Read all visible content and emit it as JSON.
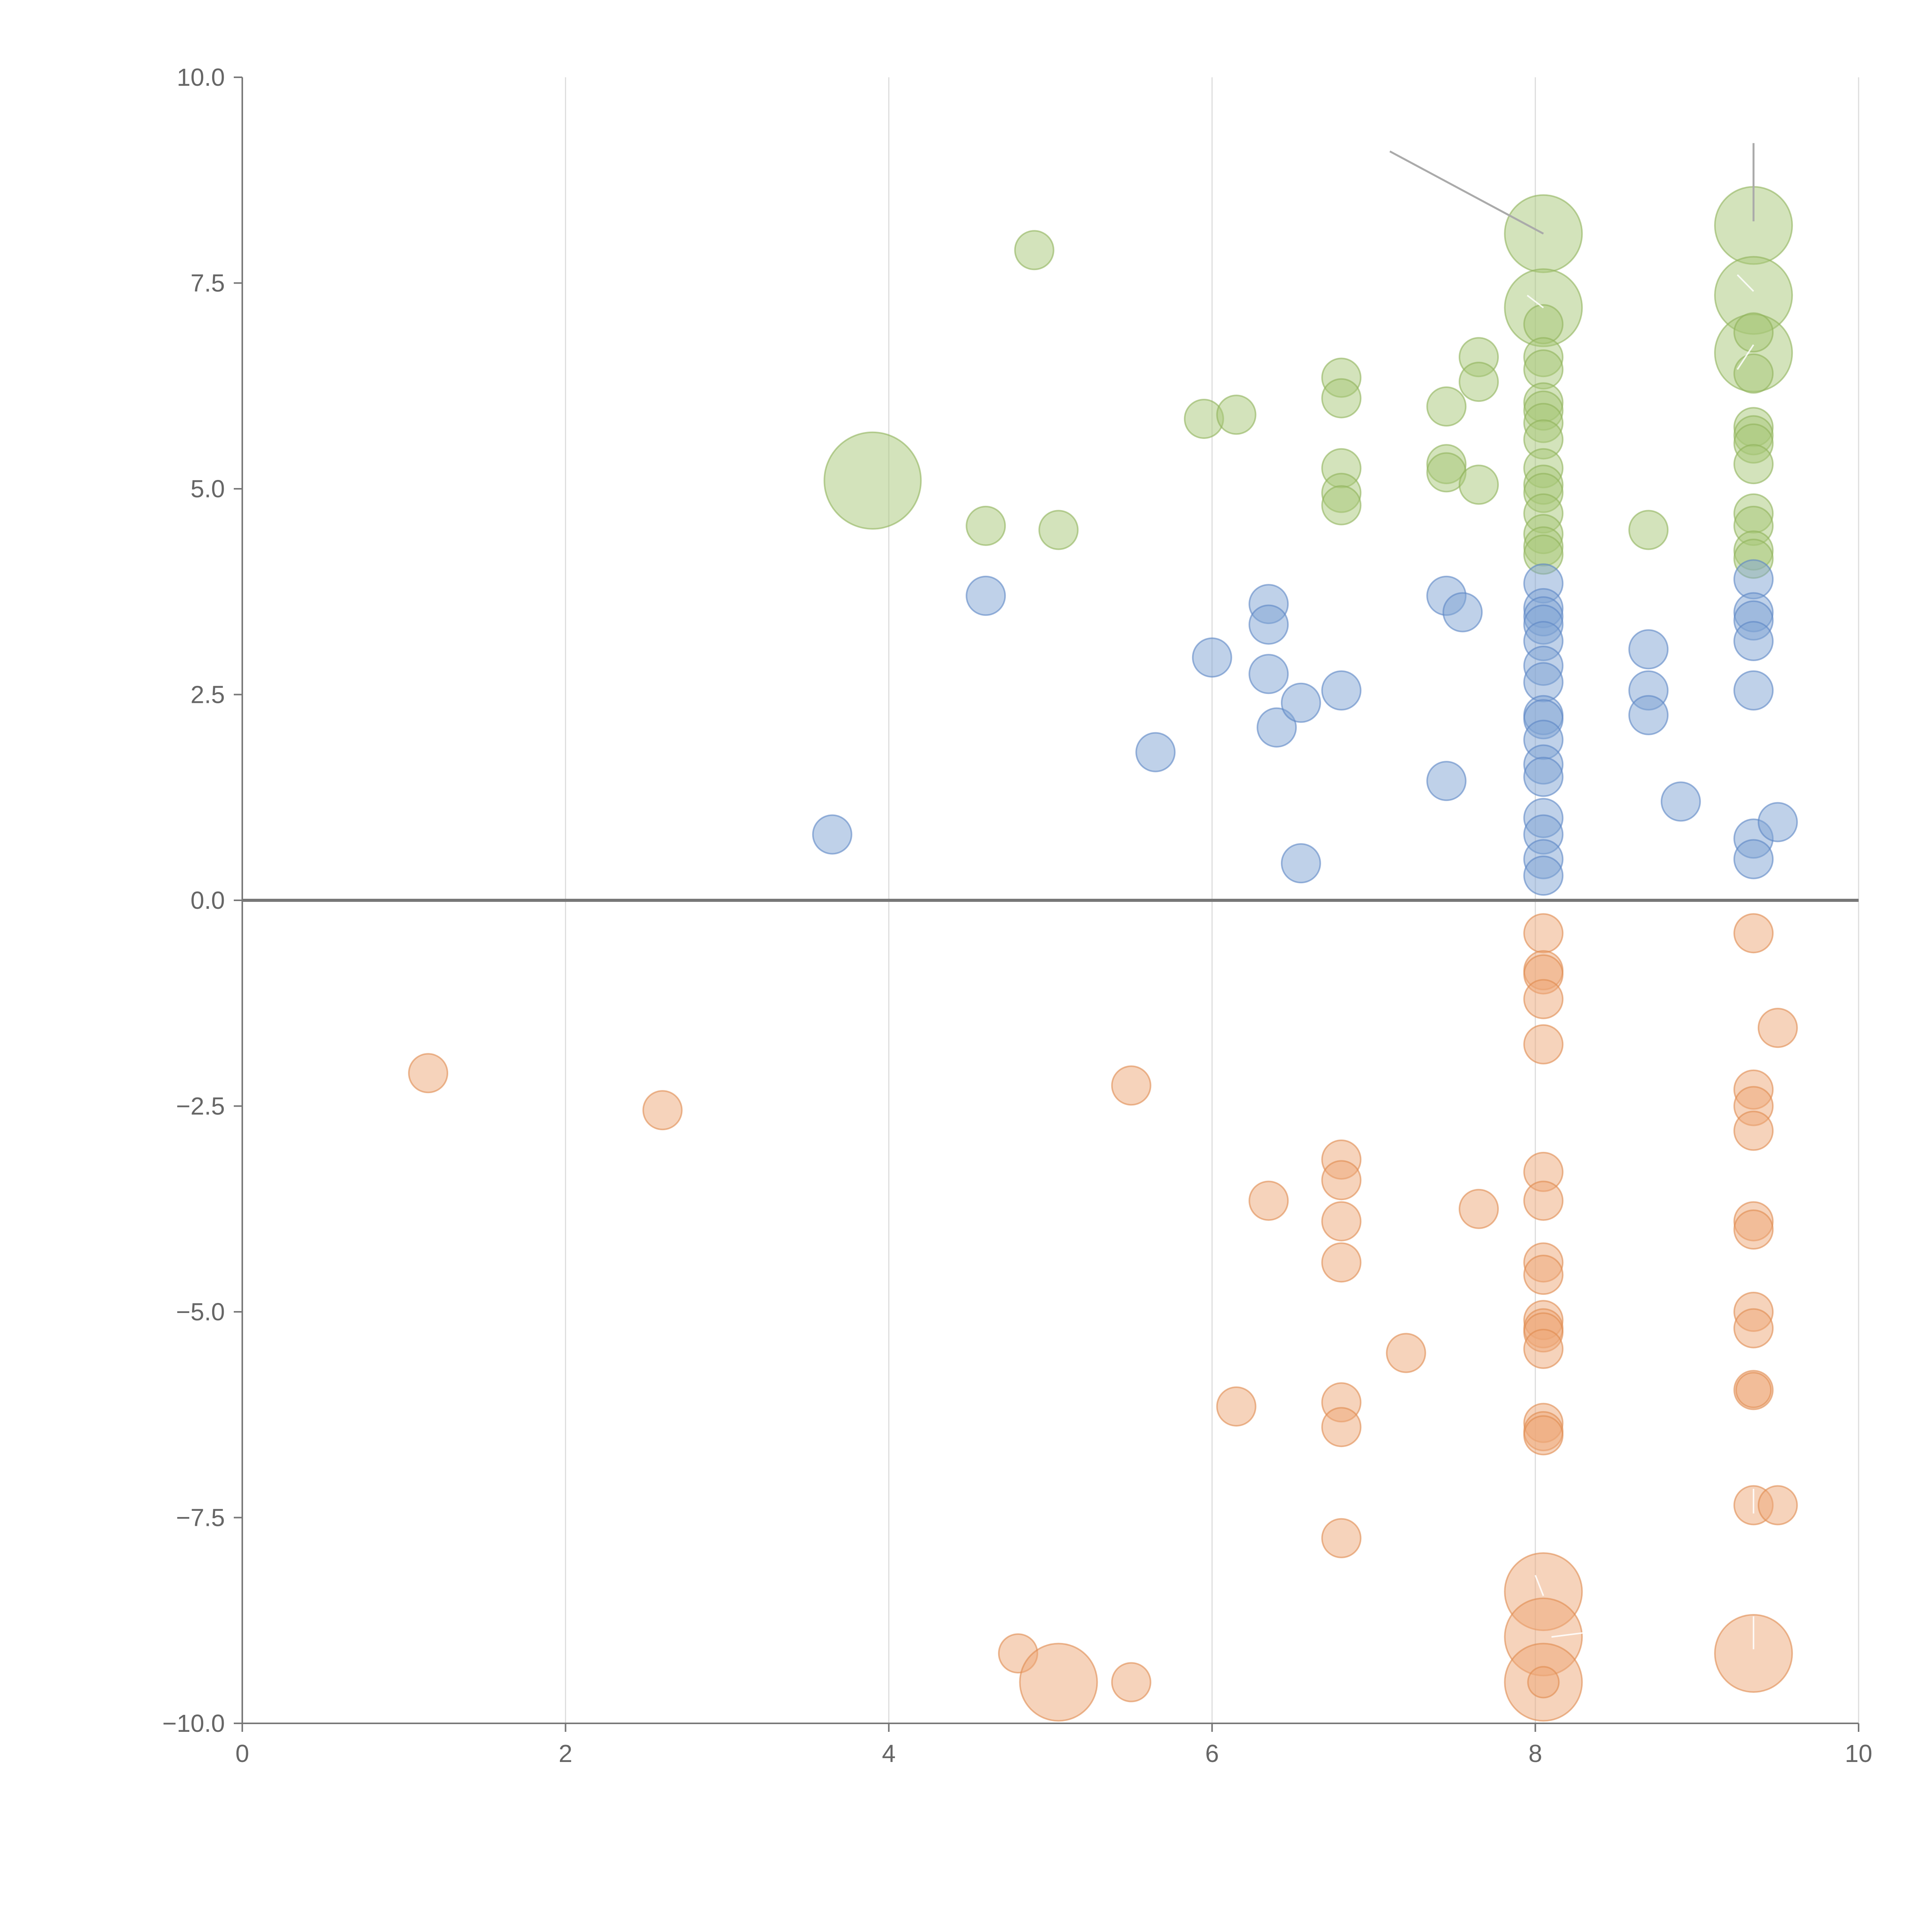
{
  "chart_data": {
    "type": "scatter",
    "title": "",
    "xlabel": "",
    "ylabel": "",
    "xlim": [
      0,
      10
    ],
    "ylim": [
      -10,
      10
    ],
    "x_ticks": [
      "0",
      "2",
      "4",
      "6",
      "8",
      "10"
    ],
    "y_ticks": [
      "10.0",
      "7.5",
      "5.0",
      "2.5",
      "0.0",
      "−2.5",
      "−5.0",
      "−7.5",
      "−10.0"
    ],
    "x_tick_values": [
      0,
      2,
      4,
      6,
      8,
      10
    ],
    "y_tick_values": [
      10,
      7.5,
      5,
      2.5,
      0,
      -2.5,
      -5,
      -7.5,
      -10
    ],
    "grid": "vertical",
    "legend": "none",
    "size_unit": "relative",
    "series": [
      {
        "name": "green",
        "color": "#a8c878",
        "stroke": "#8fb35a",
        "points": [
          {
            "x": 4.9,
            "y": 7.9,
            "s": 1
          },
          {
            "x": 3.9,
            "y": 5.1,
            "s": 2.5
          },
          {
            "x": 4.6,
            "y": 4.55,
            "s": 1
          },
          {
            "x": 5.05,
            "y": 4.5,
            "s": 1
          },
          {
            "x": 5.95,
            "y": 5.85,
            "s": 1
          },
          {
            "x": 6.15,
            "y": 5.9,
            "s": 1
          },
          {
            "x": 6.8,
            "y": 6.35,
            "s": 1
          },
          {
            "x": 6.8,
            "y": 6.1,
            "s": 1
          },
          {
            "x": 6.8,
            "y": 5.25,
            "s": 1
          },
          {
            "x": 6.8,
            "y": 4.95,
            "s": 1
          },
          {
            "x": 6.8,
            "y": 4.8,
            "s": 1
          },
          {
            "x": 7.45,
            "y": 6.0,
            "s": 1
          },
          {
            "x": 7.45,
            "y": 5.3,
            "s": 1
          },
          {
            "x": 7.45,
            "y": 5.2,
            "s": 1
          },
          {
            "x": 7.65,
            "y": 6.6,
            "s": 1
          },
          {
            "x": 7.65,
            "y": 6.3,
            "s": 1
          },
          {
            "x": 7.65,
            "y": 5.05,
            "s": 1
          },
          {
            "x": 8.7,
            "y": 4.5,
            "s": 1
          },
          {
            "x": 8.05,
            "y": 8.1,
            "s": 2
          },
          {
            "x": 8.05,
            "y": 7.2,
            "s": 2
          },
          {
            "x": 8.05,
            "y": 7.0,
            "s": 1
          },
          {
            "x": 8.05,
            "y": 6.6,
            "s": 1
          },
          {
            "x": 8.05,
            "y": 6.45,
            "s": 1
          },
          {
            "x": 8.05,
            "y": 6.05,
            "s": 1
          },
          {
            "x": 8.05,
            "y": 5.95,
            "s": 1
          },
          {
            "x": 8.05,
            "y": 5.8,
            "s": 1
          },
          {
            "x": 8.05,
            "y": 5.6,
            "s": 1
          },
          {
            "x": 8.05,
            "y": 5.25,
            "s": 1
          },
          {
            "x": 8.05,
            "y": 5.05,
            "s": 1
          },
          {
            "x": 8.05,
            "y": 4.95,
            "s": 1
          },
          {
            "x": 8.05,
            "y": 4.7,
            "s": 1
          },
          {
            "x": 8.05,
            "y": 4.45,
            "s": 1
          },
          {
            "x": 8.05,
            "y": 4.3,
            "s": 1
          },
          {
            "x": 8.05,
            "y": 4.2,
            "s": 1
          },
          {
            "x": 9.35,
            "y": 8.2,
            "s": 2
          },
          {
            "x": 9.35,
            "y": 7.35,
            "s": 2
          },
          {
            "x": 9.35,
            "y": 6.65,
            "s": 2
          },
          {
            "x": 9.35,
            "y": 6.9,
            "s": 1
          },
          {
            "x": 9.35,
            "y": 6.4,
            "s": 1
          },
          {
            "x": 9.35,
            "y": 5.75,
            "s": 1
          },
          {
            "x": 9.35,
            "y": 5.65,
            "s": 1
          },
          {
            "x": 9.35,
            "y": 5.55,
            "s": 1
          },
          {
            "x": 9.35,
            "y": 5.3,
            "s": 1
          },
          {
            "x": 9.35,
            "y": 4.7,
            "s": 1
          },
          {
            "x": 9.35,
            "y": 4.55,
            "s": 1
          },
          {
            "x": 9.35,
            "y": 4.25,
            "s": 1
          },
          {
            "x": 9.35,
            "y": 4.15,
            "s": 1
          }
        ]
      },
      {
        "name": "blue",
        "color": "#7fa3d4",
        "stroke": "#5b86c4",
        "points": [
          {
            "x": 3.65,
            "y": 0.8,
            "s": 1
          },
          {
            "x": 4.6,
            "y": 3.7,
            "s": 1
          },
          {
            "x": 5.65,
            "y": 1.8,
            "s": 1
          },
          {
            "x": 6.0,
            "y": 2.95,
            "s": 1
          },
          {
            "x": 6.35,
            "y": 3.6,
            "s": 1
          },
          {
            "x": 6.35,
            "y": 3.35,
            "s": 1
          },
          {
            "x": 6.35,
            "y": 2.75,
            "s": 1
          },
          {
            "x": 6.4,
            "y": 2.1,
            "s": 1
          },
          {
            "x": 6.55,
            "y": 2.4,
            "s": 1
          },
          {
            "x": 6.55,
            "y": 0.45,
            "s": 1
          },
          {
            "x": 6.8,
            "y": 2.55,
            "s": 1
          },
          {
            "x": 7.45,
            "y": 3.7,
            "s": 1
          },
          {
            "x": 7.55,
            "y": 3.5,
            "s": 1
          },
          {
            "x": 7.45,
            "y": 1.45,
            "s": 1
          },
          {
            "x": 8.05,
            "y": 3.85,
            "s": 1
          },
          {
            "x": 8.05,
            "y": 3.55,
            "s": 1
          },
          {
            "x": 8.05,
            "y": 3.45,
            "s": 1
          },
          {
            "x": 8.05,
            "y": 3.35,
            "s": 1
          },
          {
            "x": 8.05,
            "y": 3.15,
            "s": 1
          },
          {
            "x": 8.05,
            "y": 2.85,
            "s": 1
          },
          {
            "x": 8.05,
            "y": 2.65,
            "s": 1
          },
          {
            "x": 8.05,
            "y": 2.25,
            "s": 1
          },
          {
            "x": 8.05,
            "y": 2.2,
            "s": 1
          },
          {
            "x": 8.05,
            "y": 1.95,
            "s": 1
          },
          {
            "x": 8.05,
            "y": 1.65,
            "s": 1
          },
          {
            "x": 8.05,
            "y": 1.5,
            "s": 1
          },
          {
            "x": 8.05,
            "y": 1.0,
            "s": 1
          },
          {
            "x": 8.05,
            "y": 0.8,
            "s": 1
          },
          {
            "x": 8.05,
            "y": 0.5,
            "s": 1
          },
          {
            "x": 8.05,
            "y": 0.3,
            "s": 1
          },
          {
            "x": 8.7,
            "y": 3.05,
            "s": 1
          },
          {
            "x": 8.7,
            "y": 2.55,
            "s": 1
          },
          {
            "x": 8.7,
            "y": 2.25,
            "s": 1
          },
          {
            "x": 8.9,
            "y": 1.2,
            "s": 1
          },
          {
            "x": 9.35,
            "y": 3.9,
            "s": 1
          },
          {
            "x": 9.35,
            "y": 3.5,
            "s": 1
          },
          {
            "x": 9.35,
            "y": 3.4,
            "s": 1
          },
          {
            "x": 9.35,
            "y": 3.15,
            "s": 1
          },
          {
            "x": 9.35,
            "y": 2.55,
            "s": 1
          },
          {
            "x": 9.35,
            "y": 0.75,
            "s": 1
          },
          {
            "x": 9.35,
            "y": 0.5,
            "s": 1
          },
          {
            "x": 9.5,
            "y": 0.95,
            "s": 1
          }
        ]
      },
      {
        "name": "orange",
        "color": "#eda878",
        "stroke": "#e08a4e",
        "points": [
          {
            "x": 1.15,
            "y": -2.1,
            "s": 1
          },
          {
            "x": 2.6,
            "y": -2.55,
            "s": 1
          },
          {
            "x": 5.5,
            "y": -2.25,
            "s": 1
          },
          {
            "x": 6.35,
            "y": -3.65,
            "s": 1
          },
          {
            "x": 6.15,
            "y": -6.15,
            "s": 1
          },
          {
            "x": 6.8,
            "y": -3.15,
            "s": 1
          },
          {
            "x": 6.8,
            "y": -3.4,
            "s": 1
          },
          {
            "x": 6.8,
            "y": -3.9,
            "s": 1
          },
          {
            "x": 6.8,
            "y": -4.4,
            "s": 1
          },
          {
            "x": 6.8,
            "y": -6.1,
            "s": 1
          },
          {
            "x": 6.8,
            "y": -6.4,
            "s": 1
          },
          {
            "x": 6.8,
            "y": -7.75,
            "s": 1
          },
          {
            "x": 7.2,
            "y": -5.5,
            "s": 1
          },
          {
            "x": 7.65,
            "y": -3.75,
            "s": 1
          },
          {
            "x": 4.8,
            "y": -9.15,
            "s": 1
          },
          {
            "x": 5.05,
            "y": -9.5,
            "s": 2
          },
          {
            "x": 5.5,
            "y": -9.5,
            "s": 1
          },
          {
            "x": 8.05,
            "y": -0.4,
            "s": 1
          },
          {
            "x": 8.05,
            "y": -0.85,
            "s": 1
          },
          {
            "x": 8.05,
            "y": -0.9,
            "s": 1
          },
          {
            "x": 8.05,
            "y": -1.2,
            "s": 1
          },
          {
            "x": 8.05,
            "y": -1.75,
            "s": 1
          },
          {
            "x": 8.05,
            "y": -3.3,
            "s": 1
          },
          {
            "x": 8.05,
            "y": -3.65,
            "s": 1
          },
          {
            "x": 8.05,
            "y": -4.4,
            "s": 1
          },
          {
            "x": 8.05,
            "y": -4.55,
            "s": 1
          },
          {
            "x": 8.05,
            "y": -5.1,
            "s": 1
          },
          {
            "x": 8.05,
            "y": -5.2,
            "s": 1
          },
          {
            "x": 8.05,
            "y": -5.25,
            "s": 1
          },
          {
            "x": 8.05,
            "y": -5.45,
            "s": 1
          },
          {
            "x": 8.05,
            "y": -6.35,
            "s": 1
          },
          {
            "x": 8.05,
            "y": -6.45,
            "s": 1
          },
          {
            "x": 8.05,
            "y": -6.5,
            "s": 1
          },
          {
            "x": 8.05,
            "y": -8.4,
            "s": 2
          },
          {
            "x": 8.05,
            "y": -8.95,
            "s": 2
          },
          {
            "x": 8.05,
            "y": -9.5,
            "s": 2
          },
          {
            "x": 8.05,
            "y": -9.5,
            "s": 0.8
          },
          {
            "x": 9.35,
            "y": -0.4,
            "s": 1
          },
          {
            "x": 9.35,
            "y": -2.3,
            "s": 1
          },
          {
            "x": 9.35,
            "y": -2.5,
            "s": 1
          },
          {
            "x": 9.35,
            "y": -2.8,
            "s": 1
          },
          {
            "x": 9.35,
            "y": -3.9,
            "s": 1
          },
          {
            "x": 9.35,
            "y": -4.0,
            "s": 1
          },
          {
            "x": 9.35,
            "y": -5.0,
            "s": 1
          },
          {
            "x": 9.35,
            "y": -5.2,
            "s": 1
          },
          {
            "x": 9.35,
            "y": -5.95,
            "s": 1
          },
          {
            "x": 9.35,
            "y": -5.95,
            "s": 0.9
          },
          {
            "x": 9.35,
            "y": -7.35,
            "s": 1
          },
          {
            "x": 9.35,
            "y": -9.15,
            "s": 2
          },
          {
            "x": 9.5,
            "y": -1.55,
            "s": 1
          },
          {
            "x": 9.5,
            "y": -7.35,
            "s": 1
          }
        ]
      }
    ],
    "annotations": [
      {
        "type": "leader",
        "style": "gray",
        "from": [
          7.1,
          9.1
        ],
        "to": [
          8.05,
          8.1
        ]
      },
      {
        "type": "leader",
        "style": "gray",
        "from": [
          9.35,
          9.2
        ],
        "to": [
          9.35,
          8.25
        ]
      },
      {
        "type": "leader",
        "style": "white",
        "from": [
          7.95,
          7.35
        ],
        "to": [
          8.05,
          7.2
        ]
      },
      {
        "type": "leader",
        "style": "white",
        "from": [
          9.25,
          7.6
        ],
        "to": [
          9.35,
          7.4
        ]
      },
      {
        "type": "leader",
        "style": "white",
        "from": [
          9.35,
          6.75
        ],
        "to": [
          9.25,
          6.45
        ]
      },
      {
        "type": "leader",
        "style": "white",
        "from": [
          8.0,
          -8.2
        ],
        "to": [
          8.05,
          -8.45
        ]
      },
      {
        "type": "leader",
        "style": "white",
        "from": [
          8.1,
          -8.95
        ],
        "to": [
          8.3,
          -8.9
        ]
      },
      {
        "type": "leader",
        "style": "white",
        "from": [
          9.35,
          -7.15
        ],
        "to": [
          9.35,
          -7.45
        ]
      },
      {
        "type": "leader",
        "style": "white",
        "from": [
          9.35,
          -8.7
        ],
        "to": [
          9.35,
          -9.1
        ]
      }
    ]
  }
}
